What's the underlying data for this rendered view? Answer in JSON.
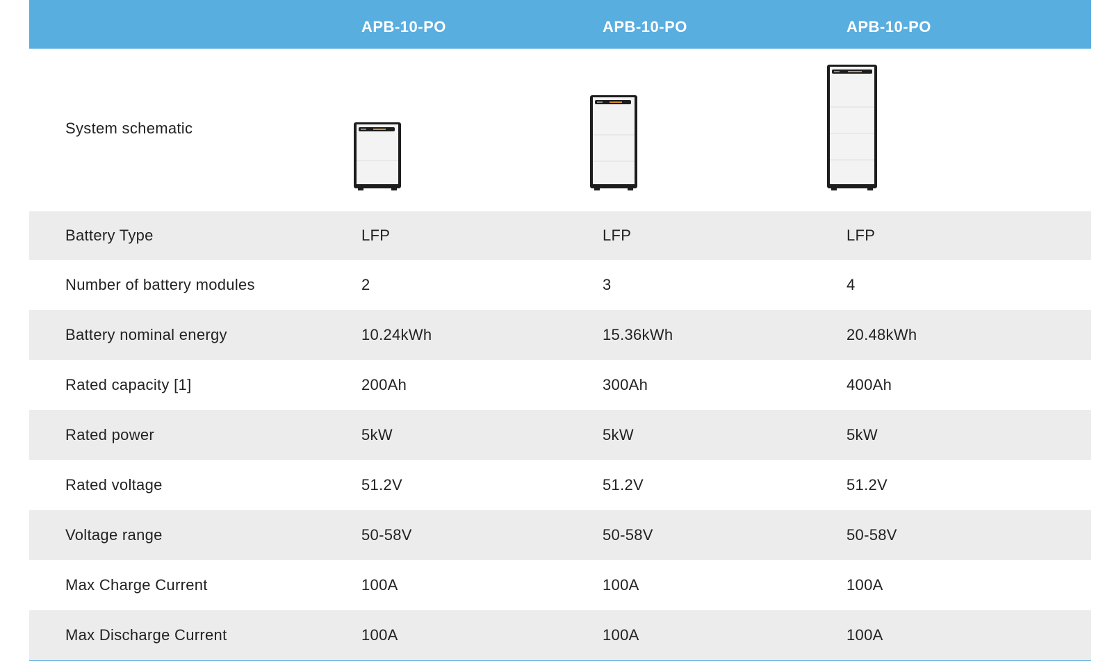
{
  "header": {
    "blank": "",
    "models": [
      "APB-10-PO",
      "APB-10-PO",
      "APB-10-PO"
    ]
  },
  "schematic": {
    "label": "System schematic",
    "images": [
      {
        "modules": 2,
        "icon": "battery-cabinet-icon"
      },
      {
        "modules": 3,
        "icon": "battery-cabinet-icon"
      },
      {
        "modules": 4,
        "icon": "battery-cabinet-icon"
      }
    ]
  },
  "rows": [
    {
      "label": "Battery Type",
      "values": [
        "LFP",
        "LFP",
        "LFP"
      ]
    },
    {
      "label": "Number of battery modules",
      "values": [
        "2",
        "3",
        "4"
      ]
    },
    {
      "label": "Battery nominal energy",
      "values": [
        "10.24kWh",
        "15.36kWh",
        "20.48kWh"
      ]
    },
    {
      "label": "Rated capacity [1]",
      "values": [
        "200Ah",
        "300Ah",
        "400Ah"
      ]
    },
    {
      "label": "Rated power",
      "values": [
        "5kW",
        "5kW",
        "5kW"
      ]
    },
    {
      "label": "Rated voltage",
      "values": [
        "51.2V",
        "51.2V",
        "51.2V"
      ]
    },
    {
      "label": "Voltage range",
      "values": [
        "50-58V",
        "50-58V",
        "50-58V"
      ]
    },
    {
      "label": "Max Charge Current",
      "values": [
        "100A",
        "100A",
        "100A"
      ]
    },
    {
      "label": "Max Discharge Current",
      "values": [
        "100A",
        "100A",
        "100A"
      ]
    }
  ],
  "colors": {
    "header_bg": "#59aee0",
    "row_shade": "#ececec",
    "text": "#222222"
  }
}
